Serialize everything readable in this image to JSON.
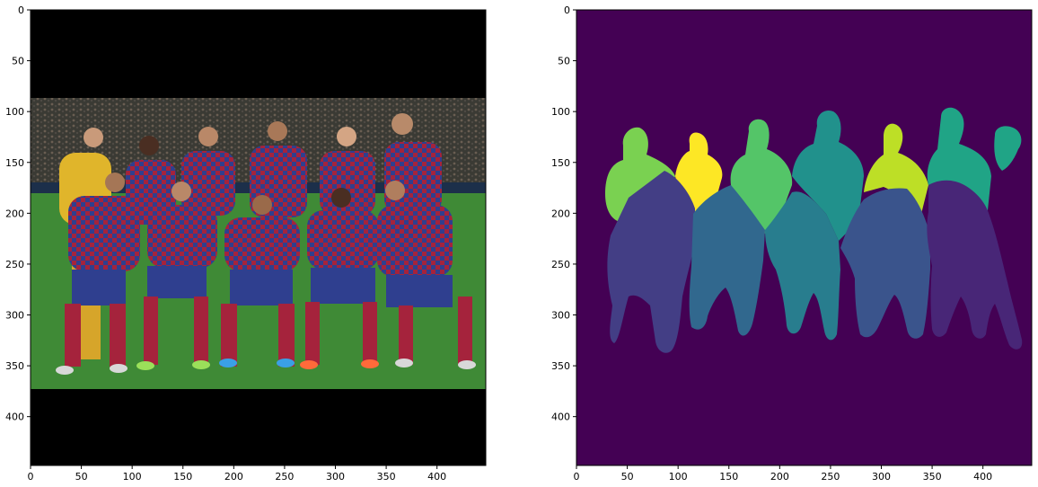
{
  "figure": {
    "background": "#ffffff",
    "panels": [
      {
        "name": "image-panel",
        "content": "photo",
        "x_ticks": [
          "0",
          "50",
          "100",
          "150",
          "200",
          "250",
          "300",
          "350",
          "400"
        ],
        "y_ticks": [
          "0",
          "50",
          "100",
          "150",
          "200",
          "250",
          "300",
          "350",
          "400"
        ],
        "xlim": [
          0,
          448
        ],
        "ylim": [
          448,
          0
        ]
      },
      {
        "name": "mask-panel",
        "content": "segmentation-mask",
        "x_ticks": [
          "0",
          "50",
          "100",
          "150",
          "200",
          "250",
          "300",
          "350",
          "400"
        ],
        "y_ticks": [
          "0",
          "50",
          "100",
          "150",
          "200",
          "250",
          "300",
          "350",
          "400"
        ],
        "xlim": [
          0,
          448
        ],
        "ylim": [
          448,
          0
        ]
      }
    ]
  },
  "photo": {
    "letterbox_color": "#000000",
    "visible_rows": [
      97,
      372
    ],
    "crowd_color": "#3a3a34",
    "pitch_color": "#3f8a36",
    "kit_primary": "#2f3f8f",
    "kit_secondary": "#a5233c",
    "goalkeeper_kit": "#e0b52b"
  },
  "mask": {
    "background_color": "#440154",
    "segment_colors": [
      "#482677",
      "#433e85",
      "#3a548c",
      "#31688e",
      "#287d8e",
      "#21918c",
      "#20a486",
      "#35b779",
      "#54c568",
      "#7ad151",
      "#bddf26",
      "#fde725"
    ]
  }
}
